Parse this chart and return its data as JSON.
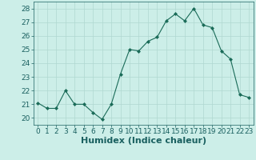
{
  "x": [
    0,
    1,
    2,
    3,
    4,
    5,
    6,
    7,
    8,
    9,
    10,
    11,
    12,
    13,
    14,
    15,
    16,
    17,
    18,
    19,
    20,
    21,
    22,
    23
  ],
  "y": [
    21.1,
    20.7,
    20.7,
    22.0,
    21.0,
    21.0,
    20.4,
    19.9,
    21.0,
    23.2,
    25.0,
    24.9,
    25.6,
    25.9,
    27.1,
    27.6,
    27.1,
    28.0,
    26.8,
    26.6,
    24.9,
    24.3,
    21.7,
    21.5
  ],
  "line_color": "#1a6b58",
  "marker": "D",
  "marker_size": 2.0,
  "bg_color": "#cceee8",
  "grid_color": "#b0d8d0",
  "xlabel": "Humidex (Indice chaleur)",
  "xlim": [
    -0.5,
    23.5
  ],
  "ylim": [
    19.5,
    28.5
  ],
  "yticks": [
    20,
    21,
    22,
    23,
    24,
    25,
    26,
    27,
    28
  ],
  "xticks": [
    0,
    1,
    2,
    3,
    4,
    5,
    6,
    7,
    8,
    9,
    10,
    11,
    12,
    13,
    14,
    15,
    16,
    17,
    18,
    19,
    20,
    21,
    22,
    23
  ],
  "tick_color": "#1a6060",
  "xlabel_fontsize": 8,
  "tick_fontsize": 6.5
}
